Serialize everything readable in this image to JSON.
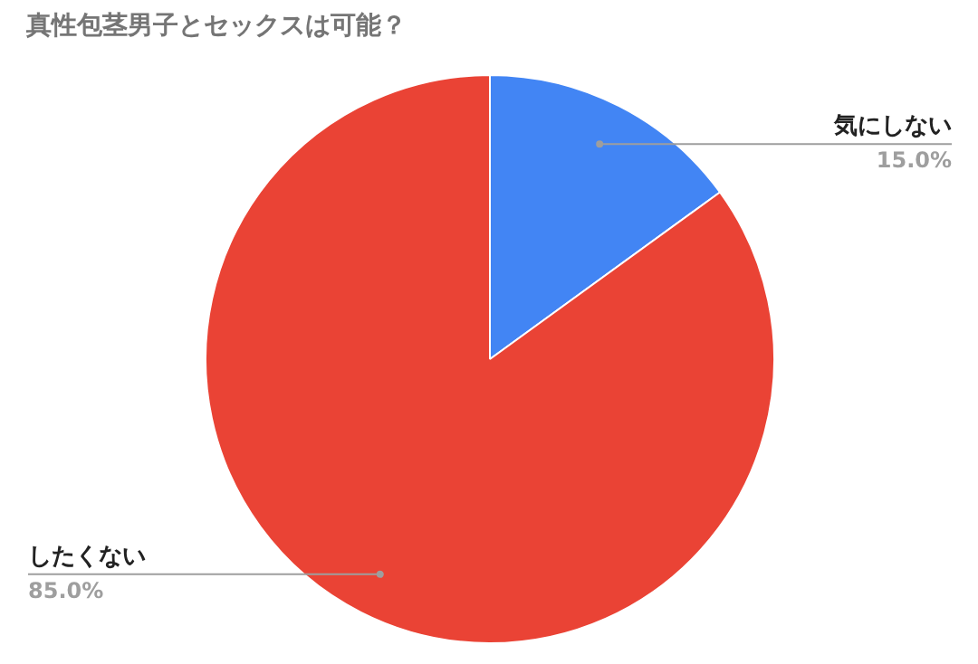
{
  "chart_data": {
    "type": "pie",
    "title": "真性包茎男子とセックスは可能？",
    "categories": [
      "気にしない",
      "したくない"
    ],
    "values": [
      15,
      85
    ],
    "colors": [
      "#4285f4",
      "#ea4335"
    ],
    "value_labels": [
      "15.0%",
      "85.0%"
    ]
  }
}
